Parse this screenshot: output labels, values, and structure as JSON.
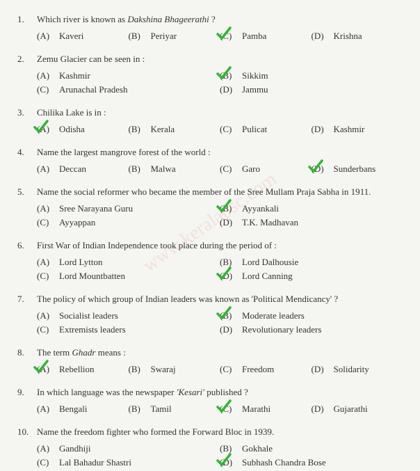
{
  "watermark": "www.keralapsc.com",
  "check_color": "#2eb82e",
  "questions": [
    {
      "num": "1.",
      "stem_html": "Which river is known as <i>Dakshina Bhageerathi</i> ?",
      "cols": 4,
      "options": [
        {
          "label": "(A)",
          "text": "Kaveri",
          "checked": false
        },
        {
          "label": "(B)",
          "text": "Periyar",
          "checked": false
        },
        {
          "label": "(C)",
          "text": "Pamba",
          "checked": true
        },
        {
          "label": "(D)",
          "text": "Krishna",
          "checked": false
        }
      ]
    },
    {
      "num": "2.",
      "stem_html": "Zemu Glacier can be seen in :",
      "cols": 2,
      "options": [
        {
          "label": "(A)",
          "text": "Kashmir",
          "checked": false
        },
        {
          "label": "(B)",
          "text": "Sikkim",
          "checked": true
        },
        {
          "label": "(C)",
          "text": "Arunachal Pradesh",
          "checked": false
        },
        {
          "label": "(D)",
          "text": "Jammu",
          "checked": false
        }
      ]
    },
    {
      "num": "3.",
      "stem_html": "Chilika Lake is in :",
      "cols": 4,
      "options": [
        {
          "label": "(A)",
          "text": "Odisha",
          "checked": true
        },
        {
          "label": "(B)",
          "text": "Kerala",
          "checked": false
        },
        {
          "label": "(C)",
          "text": "Pulicat",
          "checked": false
        },
        {
          "label": "(D)",
          "text": "Kashmir",
          "checked": false
        }
      ]
    },
    {
      "num": "4.",
      "stem_html": "Name the largest mangrove forest of the world :",
      "cols": 4,
      "options": [
        {
          "label": "(A)",
          "text": "Deccan",
          "checked": false
        },
        {
          "label": "(B)",
          "text": "Malwa",
          "checked": false
        },
        {
          "label": "(C)",
          "text": "Garo",
          "checked": false
        },
        {
          "label": "(D)",
          "text": "Sunderbans",
          "checked": true
        }
      ]
    },
    {
      "num": "5.",
      "stem_html": "Name the social reformer who became the member of the Sree Mullam Praja Sabha in 1911.",
      "cols": 2,
      "options": [
        {
          "label": "(A)",
          "text": "Sree Narayana Guru",
          "checked": false
        },
        {
          "label": "(B)",
          "text": "Ayyankali",
          "checked": true
        },
        {
          "label": "(C)",
          "text": "Ayyappan",
          "checked": false
        },
        {
          "label": "(D)",
          "text": "T.K. Madhavan",
          "checked": false
        }
      ]
    },
    {
      "num": "6.",
      "stem_html": "First War of Indian Independence took place during the period of :",
      "cols": 2,
      "options": [
        {
          "label": "(A)",
          "text": "Lord Lytton",
          "checked": false
        },
        {
          "label": "(B)",
          "text": "Lord Dalhousie",
          "checked": false
        },
        {
          "label": "(C)",
          "text": "Lord Mountbatten",
          "checked": false
        },
        {
          "label": "(D)",
          "text": "Lord Canning",
          "checked": true
        }
      ]
    },
    {
      "num": "7.",
      "stem_html": "The policy of which group of Indian leaders was known as 'Political Mendicancy' ?",
      "cols": 2,
      "options": [
        {
          "label": "(A)",
          "text": "Socialist leaders",
          "checked": false
        },
        {
          "label": "(B)",
          "text": "Moderate leaders",
          "checked": true
        },
        {
          "label": "(C)",
          "text": "Extremists leaders",
          "checked": false
        },
        {
          "label": "(D)",
          "text": "Revolutionary leaders",
          "checked": false
        }
      ]
    },
    {
      "num": "8.",
      "stem_html": "The term <i>Ghadr</i> means :",
      "cols": 4,
      "options": [
        {
          "label": "(A)",
          "text": "Rebellion",
          "checked": true
        },
        {
          "label": "(B)",
          "text": "Swaraj",
          "checked": false
        },
        {
          "label": "(C)",
          "text": "Freedom",
          "checked": false
        },
        {
          "label": "(D)",
          "text": "Solidarity",
          "checked": false
        }
      ]
    },
    {
      "num": "9.",
      "stem_html": "In which language was the newspaper <i>'Kesari'</i> published ?",
      "cols": 4,
      "options": [
        {
          "label": "(A)",
          "text": "Bengali",
          "checked": false
        },
        {
          "label": "(B)",
          "text": "Tamil",
          "checked": false
        },
        {
          "label": "(C)",
          "text": "Marathi",
          "checked": true
        },
        {
          "label": "(D)",
          "text": "Gujarathi",
          "checked": false
        }
      ]
    },
    {
      "num": "10.",
      "stem_html": "Name the freedom fighter who formed the Forward Bloc in 1939.",
      "cols": 2,
      "options": [
        {
          "label": "(A)",
          "text": "Gandhiji",
          "checked": false
        },
        {
          "label": "(B)",
          "text": "Gokhale",
          "checked": false
        },
        {
          "label": "(C)",
          "text": "Lal Bahadur Shastri",
          "checked": false
        },
        {
          "label": "(D)",
          "text": "Subhash Chandra Bose",
          "checked": true
        }
      ]
    }
  ]
}
